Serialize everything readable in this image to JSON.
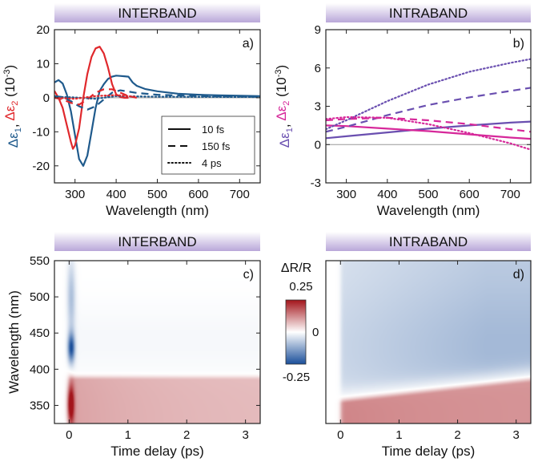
{
  "colors": {
    "interband_e1": "#1f5a8c",
    "interband_e2": "#e0282c",
    "intraband_e1": "#6a4fb0",
    "intraband_e2": "#d6289a",
    "banner_top": "#ffffff",
    "banner_bottom": "#b9a7d9",
    "map_red": "#a3141a",
    "map_white": "#ffffff",
    "map_blue": "#1a4f9a"
  },
  "colorbar": {
    "title": "ΔR/R",
    "max_label": "0.25",
    "mid_label": "0",
    "min_label": "-0.25",
    "range": [
      -0.25,
      0.25
    ]
  },
  "chart_data": [
    {
      "type": "line",
      "banner": "INTERBAND",
      "panel_label": "a)",
      "xlabel": "Wavelength (nm)",
      "ylabel_parts": [
        "Δε",
        "1",
        ", ",
        "Δε",
        "2",
        " (10",
        "-3",
        ")"
      ],
      "xlim": [
        250,
        750
      ],
      "ylim": [
        -25,
        20
      ],
      "xticks": [
        300,
        400,
        500,
        600,
        700
      ],
      "yticks": [
        -20,
        -10,
        0,
        10,
        20
      ],
      "legend": {
        "placement": "lower-right",
        "entries": [
          {
            "label": "10 fs",
            "dash": "solid"
          },
          {
            "label": "150 fs",
            "dash": "dashed"
          },
          {
            "label": "4 ps",
            "dash": "dotted"
          }
        ]
      },
      "series": [
        {
          "component": "e1",
          "delay": "10 fs",
          "dash": "solid",
          "x": [
            250,
            260,
            270,
            280,
            290,
            300,
            310,
            320,
            330,
            340,
            350,
            360,
            370,
            380,
            390,
            400,
            410,
            420,
            430,
            440,
            450,
            470,
            500,
            550,
            600,
            650,
            700,
            750
          ],
          "y": [
            4.5,
            5.2,
            4.2,
            1.0,
            -4,
            -11,
            -18,
            -20,
            -17,
            -10,
            -3,
            2,
            4,
            5.5,
            6.2,
            6.5,
            6.4,
            6.3,
            6.2,
            4.5,
            3.5,
            2.6,
            1.9,
            1.2,
            0.9,
            0.7,
            0.6,
            0.5
          ]
        },
        {
          "component": "e2",
          "delay": "10 fs",
          "dash": "solid",
          "x": [
            250,
            260,
            270,
            280,
            290,
            295,
            300,
            310,
            320,
            330,
            340,
            350,
            360,
            370,
            380,
            390,
            400,
            410,
            420,
            430
          ],
          "y": [
            2,
            0,
            -3,
            -8,
            -13,
            -15,
            -14,
            -9,
            0,
            7,
            12,
            14.5,
            15,
            13,
            9,
            4,
            1,
            0.2,
            0,
            0
          ]
        },
        {
          "component": "e1",
          "delay": "150 fs",
          "dash": "dashed",
          "x": [
            250,
            270,
            290,
            310,
            330,
            350,
            370,
            390,
            410,
            430,
            450,
            500,
            600,
            750
          ],
          "y": [
            0.5,
            0.2,
            -1,
            -2.5,
            -3.5,
            -2.5,
            -0.5,
            1.5,
            2.2,
            1.8,
            1.4,
            0.9,
            0.5,
            0.3
          ]
        },
        {
          "component": "e2",
          "delay": "150 fs",
          "dash": "dashed",
          "x": [
            250,
            270,
            290,
            310,
            330,
            350,
            370,
            390,
            410,
            430,
            450
          ],
          "y": [
            0,
            -0.5,
            -1.5,
            -2,
            -0.5,
            1.5,
            2.5,
            2.5,
            1.5,
            0.5,
            0
          ]
        },
        {
          "component": "e1",
          "delay": "4 ps",
          "dash": "dotted",
          "x": [
            250,
            300,
            350,
            400,
            450,
            500,
            750
          ],
          "y": [
            0.3,
            0.1,
            -0.3,
            0.5,
            0.4,
            0.3,
            0.2
          ]
        },
        {
          "component": "e2",
          "delay": "4 ps",
          "dash": "dotted",
          "x": [
            250,
            300,
            350,
            400,
            450
          ],
          "y": [
            0,
            -0.3,
            0.5,
            0.8,
            0.2
          ]
        }
      ]
    },
    {
      "type": "line",
      "banner": "INTRABAND",
      "panel_label": "b)",
      "xlabel": "Wavelength (nm)",
      "ylabel_parts": [
        "Δε",
        "1",
        ", ",
        "Δε",
        "2",
        " (10",
        "-3",
        ")"
      ],
      "xlim": [
        250,
        750
      ],
      "ylim": [
        -3,
        9
      ],
      "xticks": [
        300,
        400,
        500,
        600,
        700
      ],
      "yticks": [
        -3,
        0,
        3,
        6,
        9
      ],
      "series": [
        {
          "component": "e1",
          "delay": "10 fs",
          "dash": "solid",
          "x": [
            250,
            300,
            400,
            500,
            600,
            700,
            750
          ],
          "y": [
            0.5,
            0.65,
            0.95,
            1.25,
            1.5,
            1.72,
            1.8
          ]
        },
        {
          "component": "e2",
          "delay": "10 fs",
          "dash": "solid",
          "x": [
            250,
            300,
            400,
            500,
            600,
            700,
            750
          ],
          "y": [
            1.5,
            1.45,
            1.25,
            1.05,
            0.8,
            0.55,
            0.45
          ]
        },
        {
          "component": "e1",
          "delay": "150 fs",
          "dash": "dashed",
          "x": [
            250,
            300,
            400,
            500,
            600,
            700,
            750
          ],
          "y": [
            1.0,
            1.4,
            2.3,
            3.1,
            3.7,
            4.2,
            4.45
          ]
        },
        {
          "component": "e2",
          "delay": "150 fs",
          "dash": "dashed",
          "x": [
            250,
            300,
            400,
            500,
            600,
            700,
            750
          ],
          "y": [
            1.9,
            2.0,
            2.1,
            1.9,
            1.6,
            1.2,
            1.0
          ]
        },
        {
          "component": "e1",
          "delay": "4 ps",
          "dash": "dotted",
          "x": [
            250,
            300,
            400,
            500,
            600,
            700,
            750
          ],
          "y": [
            1.2,
            1.9,
            3.4,
            4.7,
            5.7,
            6.4,
            6.7
          ]
        },
        {
          "component": "e2",
          "delay": "4 ps",
          "dash": "dotted",
          "x": [
            250,
            300,
            400,
            500,
            600,
            700,
            750
          ],
          "y": [
            2.0,
            2.15,
            2.1,
            1.6,
            0.9,
            0.1,
            -0.4
          ]
        }
      ]
    },
    {
      "type": "heatmap",
      "banner": "INTERBAND",
      "panel_label": "c)",
      "xlabel": "Time delay (ps)",
      "ylabel": "Wavelength (nm)",
      "xlim": [
        -0.25,
        3.25
      ],
      "ylim": [
        325,
        550
      ],
      "xticks": [
        0,
        1,
        2,
        3
      ],
      "yticks": [
        350,
        400,
        450,
        500,
        550
      ],
      "features": [
        {
          "kind": "positive",
          "t0": 0.0,
          "wavelength_range": [
            325,
            385
          ],
          "peak": 0.25,
          "long_time_value": 0.07
        },
        {
          "kind": "negative",
          "t0": 0.0,
          "wavelength_center": 430,
          "peak": -0.25,
          "long_time_value": -0.01
        }
      ]
    },
    {
      "type": "heatmap",
      "banner": "INTRABAND",
      "panel_label": "d)",
      "xlabel": "Time delay (ps)",
      "xlim": [
        -0.25,
        3.25
      ],
      "ylim": [
        325,
        550
      ],
      "xticks": [
        0,
        1,
        2,
        3
      ],
      "features": [
        {
          "kind": "positive",
          "t0": 0.0,
          "wavelength_range": [
            325,
            355
          ],
          "peak": 0.13
        },
        {
          "kind": "negative",
          "t0": 0.0,
          "wavelength_range": [
            375,
            550
          ],
          "peak": -0.1
        }
      ]
    }
  ]
}
